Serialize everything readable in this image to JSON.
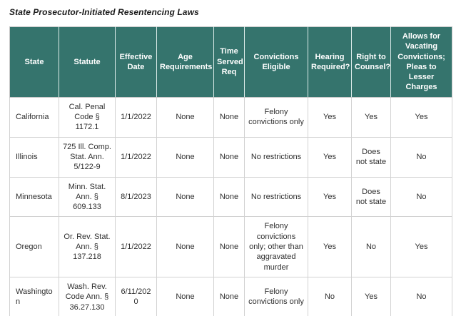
{
  "page": {
    "title": "State Prosecutor-Initiated Resentencing Laws"
  },
  "colors": {
    "header_bg": "#35746D",
    "header_text": "#FFFFFF",
    "cell_border": "#D2D2D2",
    "body_text": "#2E2E2E"
  },
  "chart_data": {
    "type": "table",
    "title": "State Prosecutor-Initiated Resentencing Laws",
    "columns": [
      "State",
      "Statute",
      "Effective Date",
      "Age Requirements",
      "Time Served Req",
      "Convictions Eligible",
      "Hearing Required?",
      "Right to Counsel?",
      "Allows for Vacating Convictions; Pleas to Lesser Charges"
    ],
    "rows": [
      [
        "California",
        "Cal. Penal Code § 1172.1",
        "1/1/2022",
        "None",
        "None",
        "Felony convictions only",
        "Yes",
        "Yes",
        "Yes"
      ],
      [
        "Illinois",
        "725 Ill. Comp. Stat. Ann. 5/122-9",
        "1/1/2022",
        "None",
        "None",
        "No restrictions",
        "Yes",
        "Does not state",
        "No"
      ],
      [
        "Minnesota",
        "Minn. Stat. Ann. § 609.133",
        "8/1/2023",
        "None",
        "None",
        "No restrictions",
        "Yes",
        "Does not state",
        "No"
      ],
      [
        "Oregon",
        "Or. Rev. Stat. Ann. § 137.218",
        "1/1/2022",
        "None",
        "None",
        "Felony convictions only; other than aggravated murder",
        "Yes",
        "No",
        "Yes"
      ],
      [
        "Washington",
        "Wash. Rev. Code Ann. § 36.27.130",
        "6/11/2020",
        "None",
        "None",
        "Felony convictions only",
        "No",
        "Yes",
        "No"
      ]
    ]
  }
}
